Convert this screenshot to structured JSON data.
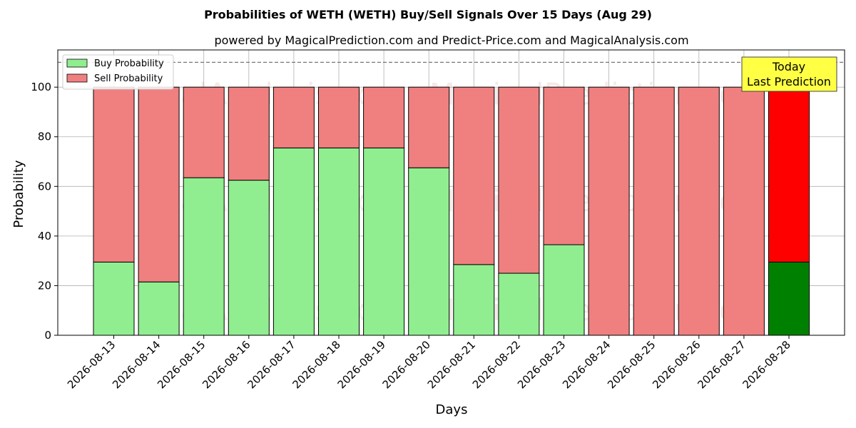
{
  "chart_data": {
    "type": "bar",
    "stacked": true,
    "title": "Probabilities of WETH (WETH) Buy/Sell Signals Over 15 Days (Aug 29)",
    "subtitle": "powered by MagicalPrediction.com and Predict-Price.com and MagicalAnalysis.com",
    "xlabel": "Days",
    "ylabel": "Probability",
    "ylim": [
      0,
      115
    ],
    "yticks": [
      0,
      20,
      40,
      60,
      80,
      100
    ],
    "reference_line": 110,
    "grid": true,
    "legend_position": "top-left",
    "categories": [
      "2026-08-13",
      "2026-08-14",
      "2026-08-15",
      "2026-08-16",
      "2026-08-17",
      "2026-08-18",
      "2026-08-19",
      "2026-08-20",
      "2026-08-21",
      "2026-08-22",
      "2026-08-23",
      "2026-08-24",
      "2026-08-25",
      "2026-08-26",
      "2026-08-27",
      "2026-08-28"
    ],
    "series": [
      {
        "name": "Buy Probability",
        "color": "#90ee90",
        "highlight_color": "#008000",
        "values": [
          29.5,
          21.5,
          63.5,
          62.5,
          75.5,
          75.5,
          75.5,
          67.5,
          28.5,
          25,
          36.5,
          0,
          0,
          0,
          0,
          29.5
        ]
      },
      {
        "name": "Sell Probability",
        "color": "#f08080",
        "highlight_color": "#ff0000",
        "values": [
          70.5,
          78.5,
          36.5,
          37.5,
          24.5,
          24.5,
          24.5,
          32.5,
          71.5,
          75,
          63.5,
          100,
          100,
          100,
          100,
          70.5
        ]
      }
    ],
    "highlight_index": 15,
    "annotation": {
      "lines": [
        "Today",
        "Last Prediction"
      ],
      "background": "#ffff44"
    },
    "watermarks": [
      "MagicalAnalysis.com",
      "MagicalPrediction.com"
    ]
  }
}
